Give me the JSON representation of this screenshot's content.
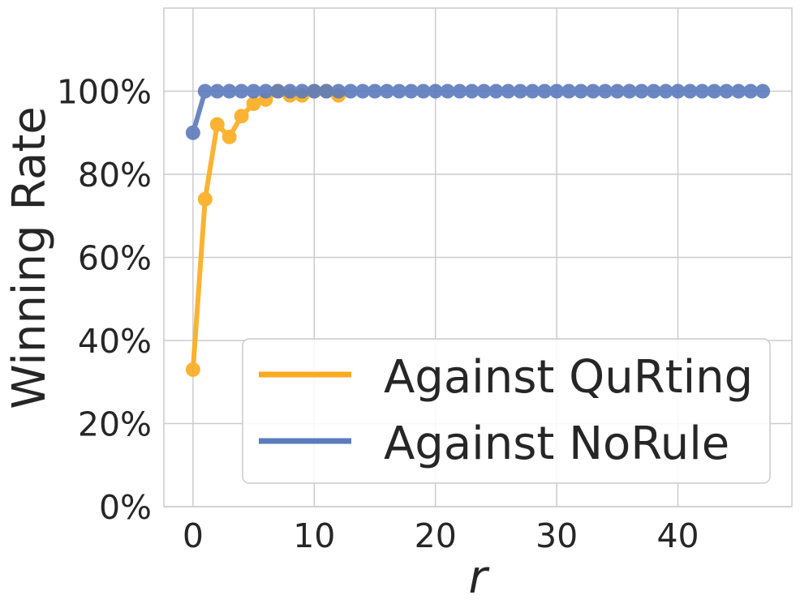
{
  "chart_data": {
    "type": "line",
    "xlabel": "r",
    "ylabel": "Winning Rate",
    "xlim": [
      -2.4,
      49.4
    ],
    "ylim": [
      0,
      120
    ],
    "xticks": [
      0,
      10,
      20,
      30,
      40
    ],
    "yticks": [
      0,
      20,
      40,
      60,
      80,
      100
    ],
    "ytick_suffix": "%",
    "grid": true,
    "legend_position": "lower-right",
    "series": [
      {
        "name": "Against QuRting",
        "color": "#fbab1d",
        "x": [
          0,
          1,
          2,
          3,
          4,
          5,
          6,
          7,
          8,
          9,
          10,
          11,
          12
        ],
        "y": [
          33,
          74,
          92,
          89,
          94,
          97,
          98,
          100,
          99,
          99,
          100,
          100,
          99
        ]
      },
      {
        "name": "Against NoRule",
        "color": "#5b7bbd",
        "x": [
          0,
          1,
          2,
          3,
          4,
          5,
          6,
          7,
          8,
          9,
          10,
          11,
          12,
          13,
          14,
          15,
          16,
          17,
          18,
          19,
          20,
          21,
          22,
          23,
          24,
          25,
          26,
          27,
          28,
          29,
          30,
          31,
          32,
          33,
          34,
          35,
          36,
          37,
          38,
          39,
          40,
          41,
          42,
          43,
          44,
          45,
          46,
          47
        ],
        "y": [
          90,
          100,
          100,
          100,
          100,
          100,
          100,
          100,
          100,
          100,
          100,
          100,
          100,
          100,
          100,
          100,
          100,
          100,
          100,
          100,
          100,
          100,
          100,
          100,
          100,
          100,
          100,
          100,
          100,
          100,
          100,
          100,
          100,
          100,
          100,
          100,
          100,
          100,
          100,
          100,
          100,
          100,
          100,
          100,
          100,
          100,
          100,
          100
        ]
      }
    ]
  }
}
